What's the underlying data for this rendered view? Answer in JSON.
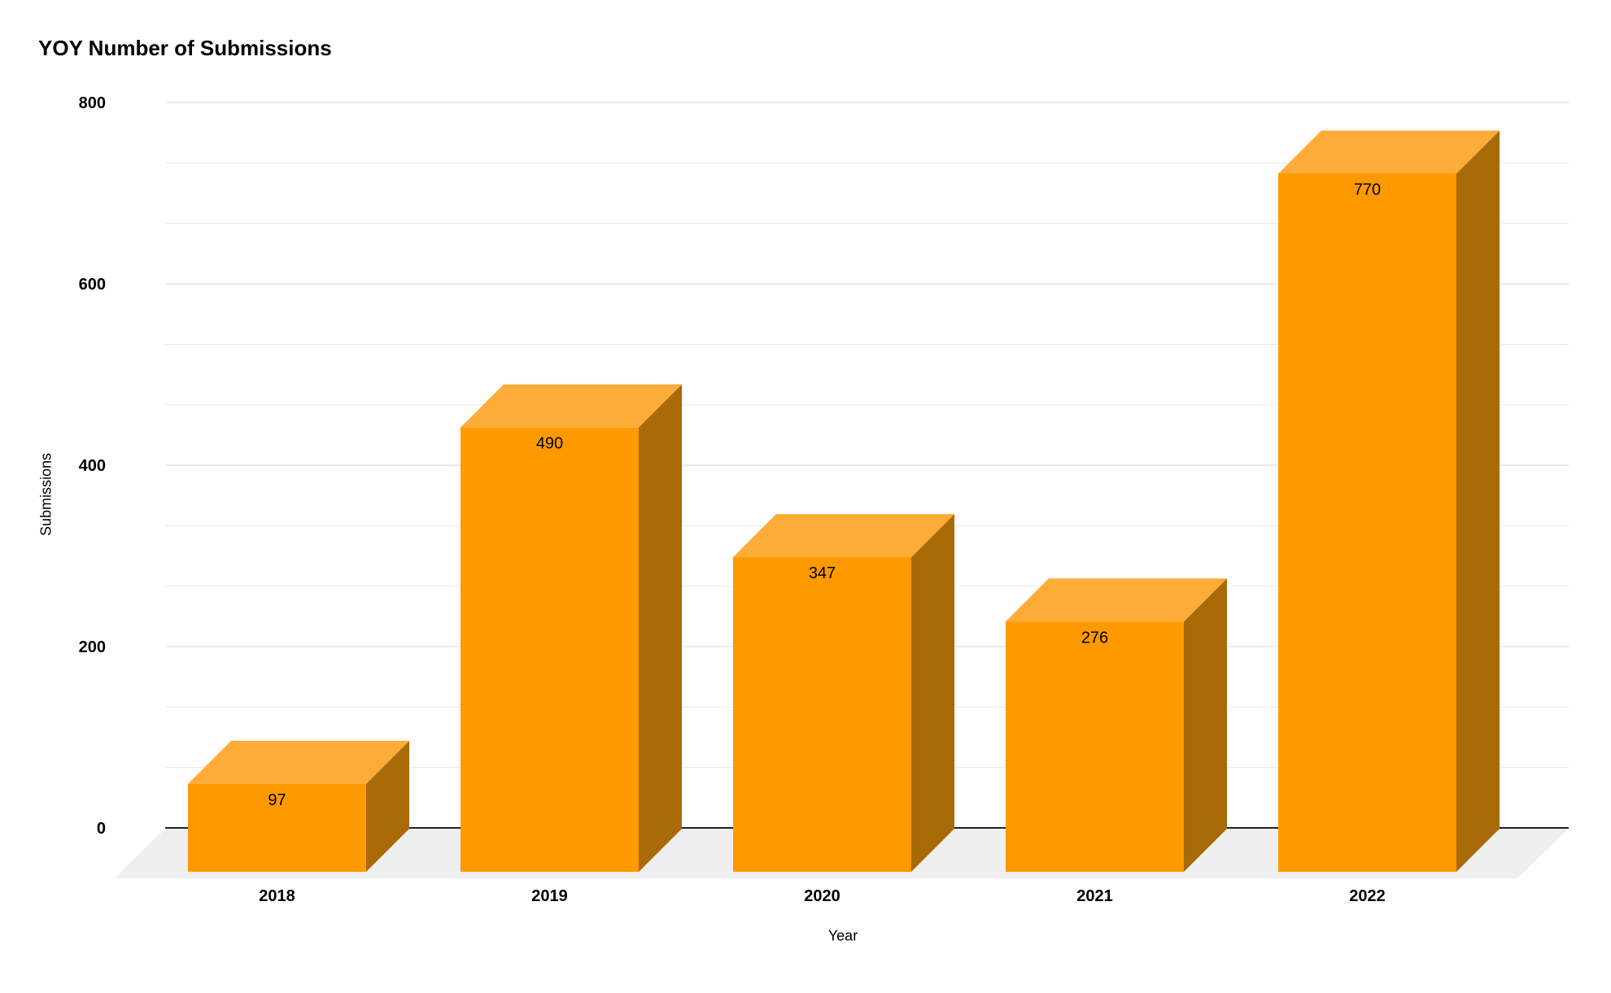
{
  "chart_data": {
    "type": "bar",
    "style": "3d-column",
    "title": "YOY Number of Submissions",
    "xlabel": "Year",
    "ylabel": "Submissions",
    "categories": [
      "2018",
      "2019",
      "2020",
      "2021",
      "2022"
    ],
    "series": [
      {
        "name": "Submissions",
        "values": [
          97,
          490,
          347,
          276,
          770
        ]
      }
    ],
    "data_labels": [
      97,
      490,
      347,
      276,
      770
    ],
    "ylim": [
      0,
      800
    ],
    "yticks": [
      0,
      200,
      400,
      600,
      800
    ],
    "minor_gridlines_between_majors": 2,
    "grid": true,
    "legend_position": "none",
    "colors": {
      "bar_front": "#ff9900",
      "bar_top": "#ffab38",
      "bar_side": "#a96a08",
      "floor": "#efefef",
      "gridline_major": "#d4d4d4",
      "gridline_minor": "#e8e8e8",
      "axis_line": "#212121",
      "text": "#000000"
    }
  }
}
